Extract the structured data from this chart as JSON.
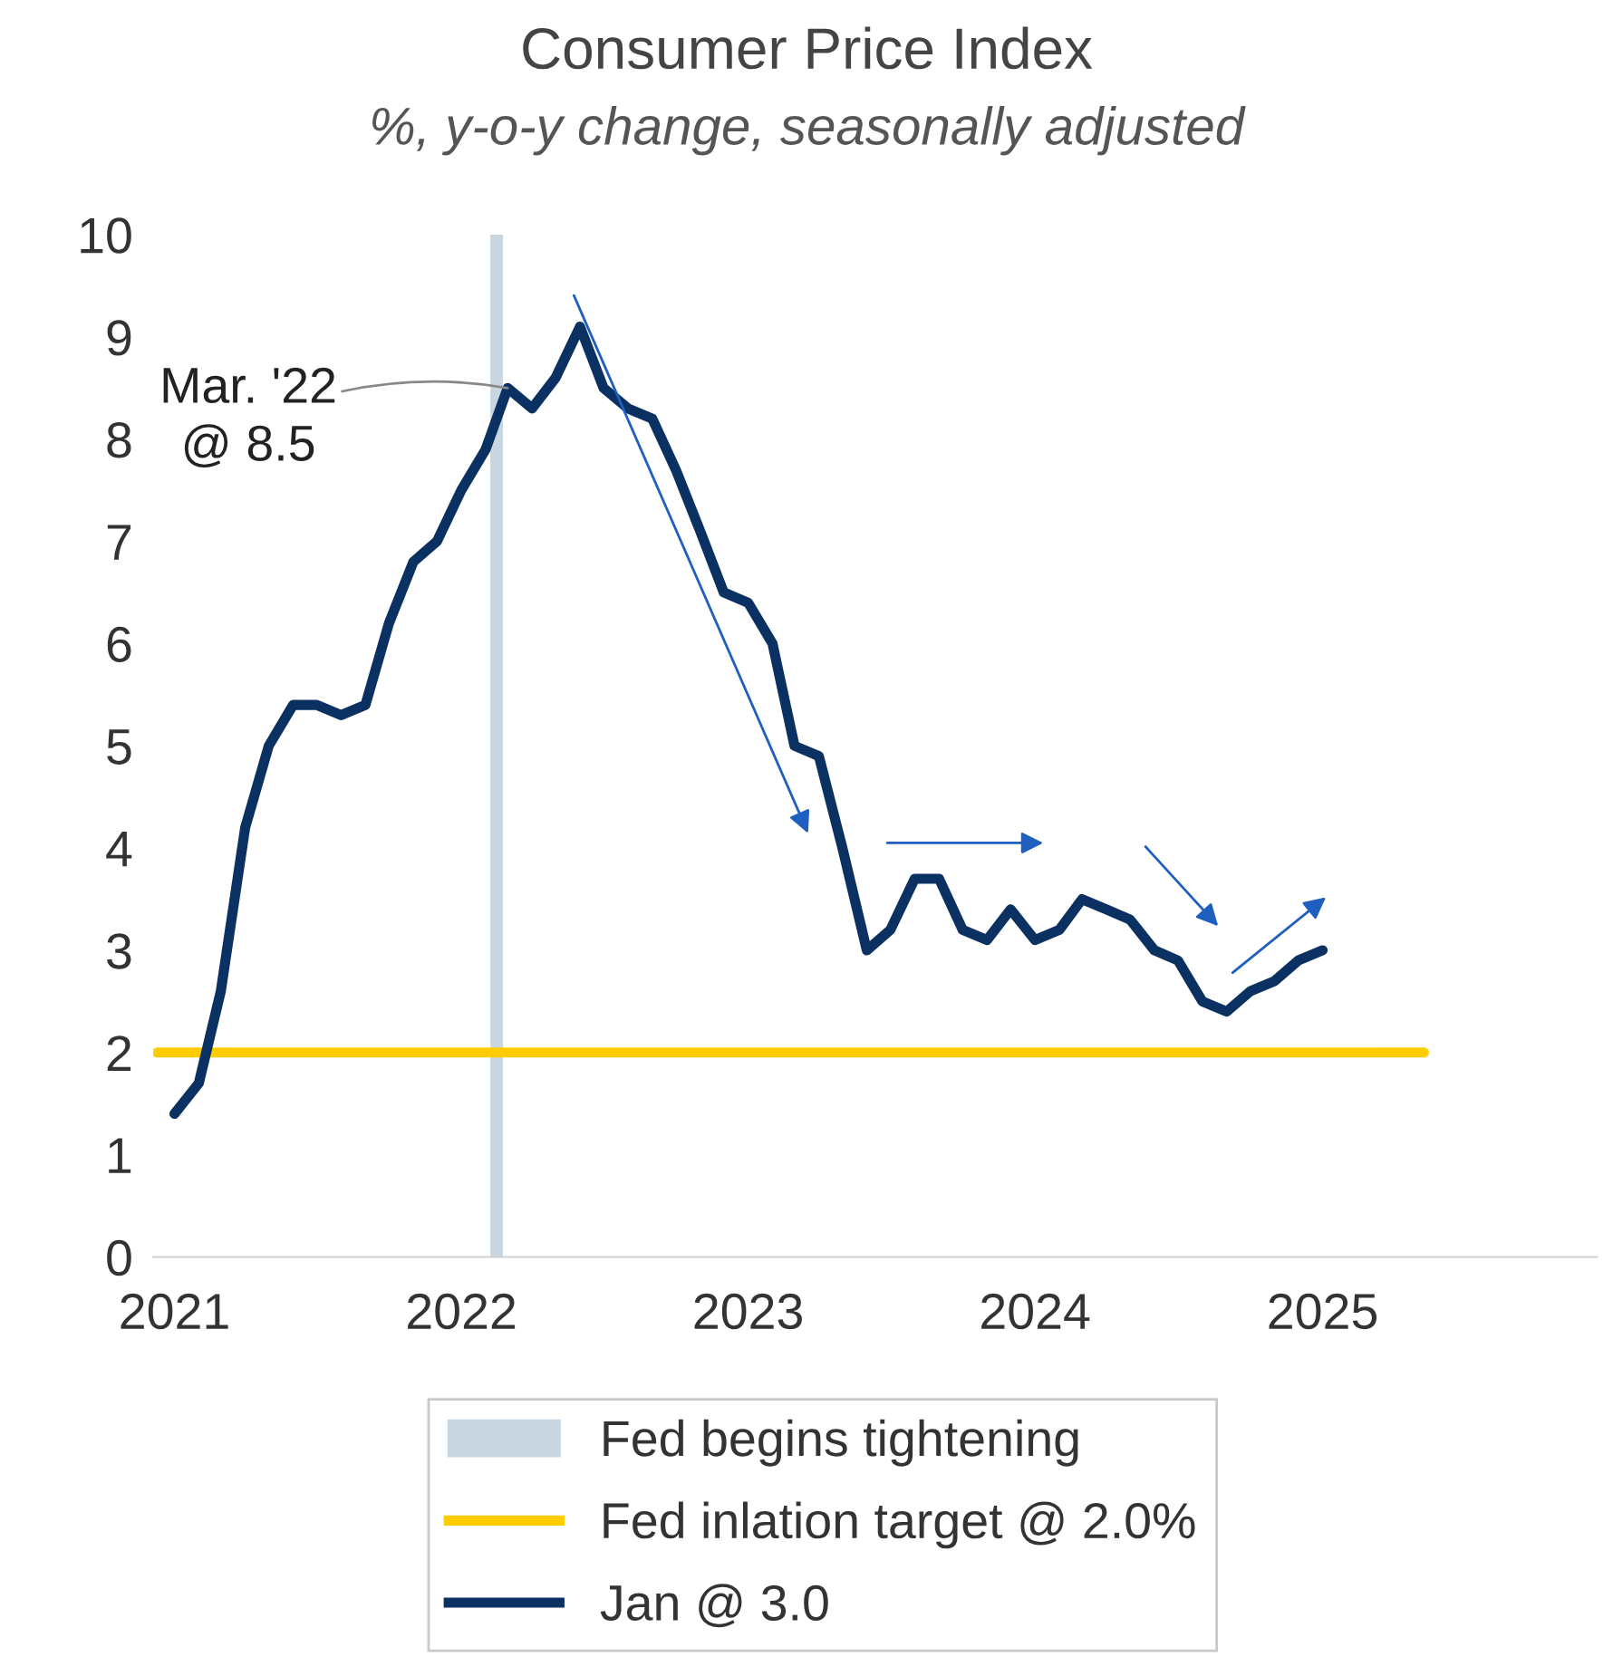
{
  "chart_data": {
    "type": "line",
    "title": "Consumer Price Index",
    "subtitle": "%, y-o-y change, seasonally adjusted",
    "x": [
      "2021-01",
      "2021-02",
      "2021-03",
      "2021-04",
      "2021-05",
      "2021-06",
      "2021-07",
      "2021-08",
      "2021-09",
      "2021-10",
      "2021-11",
      "2021-12",
      "2022-01",
      "2022-02",
      "2022-03",
      "2022-04",
      "2022-05",
      "2022-06",
      "2022-07",
      "2022-08",
      "2022-09",
      "2022-10",
      "2022-11",
      "2022-12",
      "2023-01",
      "2023-02",
      "2023-03",
      "2023-04",
      "2023-05",
      "2023-06",
      "2023-07",
      "2023-08",
      "2023-09",
      "2023-10",
      "2023-11",
      "2023-12",
      "2024-01",
      "2024-02",
      "2024-03",
      "2024-04",
      "2024-05",
      "2024-06",
      "2024-07",
      "2024-08",
      "2024-09",
      "2024-10",
      "2024-11",
      "2024-12",
      "2025-01"
    ],
    "series": [
      {
        "name": "Fed inlation target @ 2.0%",
        "color": "#ffcc00",
        "x": [
          "2020-12-25",
          "2025-05-25"
        ],
        "values": [
          2,
          2
        ]
      },
      {
        "name": "Jan @ 3.0",
        "color": "#0a3161",
        "values": [
          1.4,
          1.7,
          2.6,
          4.2,
          5.0,
          5.4,
          5.4,
          5.3,
          5.4,
          6.2,
          6.8,
          7.0,
          7.5,
          7.9,
          8.5,
          8.3,
          8.6,
          9.1,
          8.5,
          8.3,
          8.2,
          7.7,
          7.1,
          6.5,
          6.4,
          6.0,
          5.0,
          4.9,
          4.0,
          3.0,
          3.2,
          3.7,
          3.7,
          3.2,
          3.1,
          3.4,
          3.1,
          3.2,
          3.5,
          3.4,
          3.3,
          3.0,
          2.9,
          2.5,
          2.4,
          2.6,
          2.7,
          2.9,
          3.0
        ]
      }
    ],
    "bands": [
      {
        "axis": "x",
        "from": "2022-02-22",
        "to": "2022-03-10",
        "label": "Fed begins tightening",
        "color": "#c8d6e2"
      }
    ],
    "annotations": [
      {
        "text": "Mar. '22\n@ 8.5",
        "x": "2022-03",
        "y": 8.5
      }
    ],
    "xlim": [
      "2020-12-20",
      "2025-12-31"
    ],
    "xticks": [
      {
        "value": "2021-01",
        "label": "2021"
      },
      {
        "value": "2022-01",
        "label": "2022"
      },
      {
        "value": "2023-01",
        "label": "2023"
      },
      {
        "value": "2024-01",
        "label": "2024"
      },
      {
        "value": "2025-01",
        "label": "2025"
      }
    ],
    "ylim": [
      0,
      10
    ],
    "yticks": [
      0,
      1,
      2,
      3,
      4,
      5,
      6,
      7,
      8,
      9,
      10
    ],
    "grid": false,
    "legend": "bottom",
    "line_style": "solid",
    "marker": "none"
  }
}
